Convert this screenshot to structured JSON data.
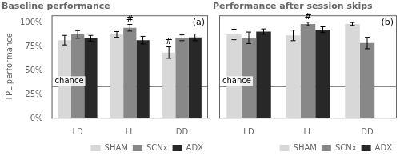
{
  "chart_data": [
    {
      "type": "bar",
      "title": "Baseline performance",
      "categories": [
        "LD",
        "LL",
        "DD"
      ],
      "series": [
        {
          "name": "SHAM",
          "color": "#d8d8d8",
          "values": [
            0.82,
            0.88,
            0.69
          ],
          "errors": [
            0.05,
            0.03,
            0.06
          ],
          "annotations": [
            null,
            null,
            "#"
          ]
        },
        {
          "name": "SCNx",
          "color": "#888888",
          "values": [
            0.88,
            0.95,
            0.845
          ],
          "errors": [
            0.04,
            0.035,
            0.03
          ],
          "annotations": [
            null,
            "#",
            null
          ]
        },
        {
          "name": "ADX",
          "color": "#282828",
          "values": [
            0.84,
            0.82,
            0.85
          ],
          "errors": [
            0.03,
            0.04,
            0.035
          ]
        }
      ],
      "ylabel": "TPL performance",
      "ylim": [
        0.0,
        1.08
      ],
      "yticks": [
        {
          "value": 0.0,
          "label": "0%"
        },
        {
          "value": 0.25,
          "label": "25%"
        },
        {
          "value": 0.5,
          "label": "50%"
        },
        {
          "value": 0.75,
          "label": "75%"
        },
        {
          "value": 1.0,
          "label": "100%"
        }
      ],
      "grid": false,
      "legend": "lower right",
      "annotations": [
        {
          "text": "chance",
          "y": 0.333
        },
        {
          "text": "(a)"
        }
      ]
    },
    {
      "type": "bar",
      "title": "Performance after session skips",
      "categories": [
        "LD",
        "LL",
        "DD"
      ],
      "series": [
        {
          "name": "SHAM",
          "color": "#d8d8d8",
          "values": [
            0.88,
            0.87,
            0.99
          ],
          "errors": [
            0.055,
            0.055,
            0.015
          ]
        },
        {
          "name": "SCNx",
          "color": "#888888",
          "values": [
            0.845,
            0.99,
            0.79
          ],
          "errors": [
            0.06,
            0.018,
            0.06
          ],
          "annotations": [
            null,
            "#",
            null
          ]
        },
        {
          "name": "ADX",
          "color": "#282828",
          "values": [
            0.91,
            0.93,
            null
          ],
          "errors": [
            0.028,
            0.03,
            null
          ]
        }
      ],
      "ylim": [
        0.0,
        1.08
      ],
      "yticks": [
        {
          "value": 0.0,
          "label": "0%"
        },
        {
          "value": 0.25,
          "label": "25%"
        },
        {
          "value": 0.5,
          "label": "50%"
        },
        {
          "value": 0.75,
          "label": "75%"
        },
        {
          "value": 1.0,
          "label": "100%"
        }
      ],
      "grid": false,
      "tick_labels": "x",
      "legend": "lower right",
      "annotations": [
        {
          "text": "chance",
          "y": 0.333
        },
        {
          "text": "(b)"
        }
      ]
    }
  ]
}
